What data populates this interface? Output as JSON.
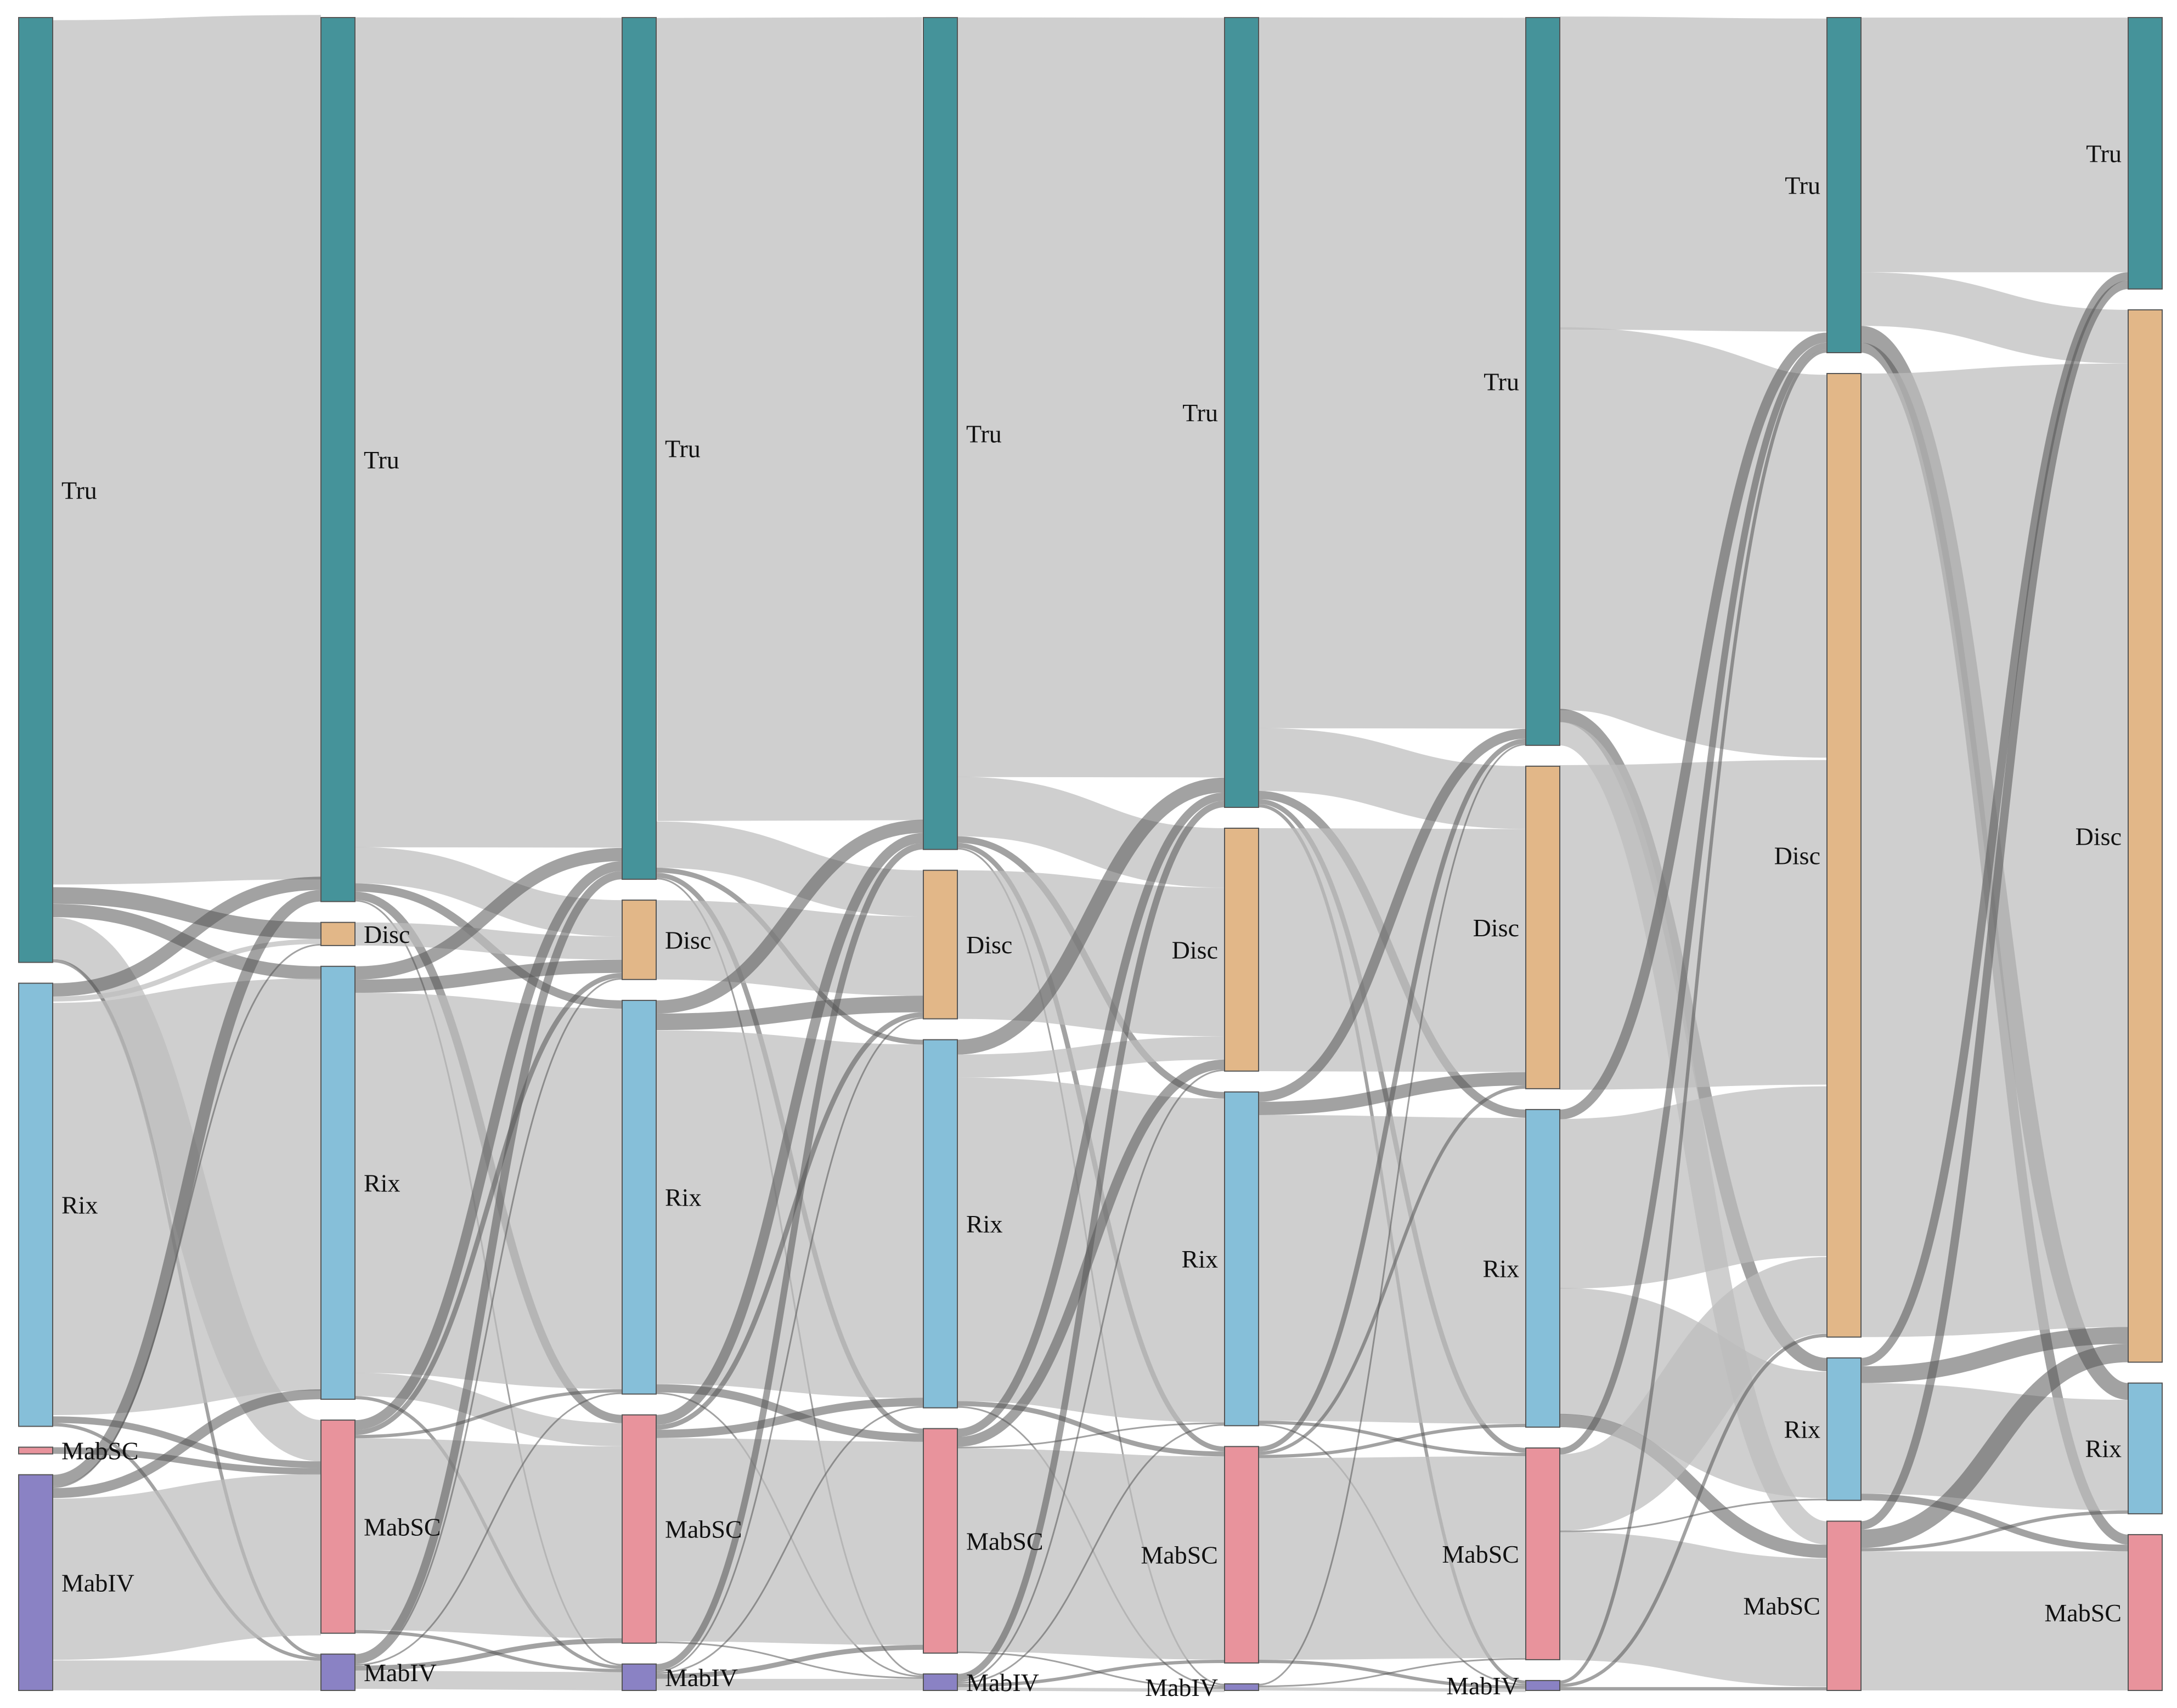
{
  "colors": {
    "Tru": "#45939a",
    "Disc": "#e2b788",
    "Rix": "#86bfd9",
    "MabSC": "#e8939c",
    "MabIV": "#8a82c4",
    "link": "#c8c8c8",
    "link_dark": "#666666"
  },
  "columns": [
    {
      "nodes": [
        {
          "label": "Tru",
          "value": 56.5
        },
        {
          "label": "Rix",
          "value": 26.5
        },
        {
          "label": "MabSC",
          "value": 0.4
        },
        {
          "label": "MabIV",
          "value": 12.9
        }
      ]
    },
    {
      "nodes": [
        {
          "label": "Tru",
          "value": 53.5
        },
        {
          "label": "Disc",
          "value": 1.4
        },
        {
          "label": "Rix",
          "value": 26.2
        },
        {
          "label": "MabSC",
          "value": 12.9
        },
        {
          "label": "MabIV",
          "value": 2.2
        }
      ]
    },
    {
      "nodes": [
        {
          "label": "Tru",
          "value": 52.1
        },
        {
          "label": "Disc",
          "value": 4.8
        },
        {
          "label": "Rix",
          "value": 23.8
        },
        {
          "label": "MabSC",
          "value": 13.8
        },
        {
          "label": "MabIV",
          "value": 1.6
        }
      ]
    },
    {
      "nodes": [
        {
          "label": "Tru",
          "value": 50.4
        },
        {
          "label": "Disc",
          "value": 9.0
        },
        {
          "label": "Rix",
          "value": 22.3
        },
        {
          "label": "MabSC",
          "value": 13.6
        },
        {
          "label": "MabIV",
          "value": 1.0
        }
      ]
    },
    {
      "nodes": [
        {
          "label": "Tru",
          "value": 47.8
        },
        {
          "label": "Disc",
          "value": 14.7
        },
        {
          "label": "Rix",
          "value": 20.2
        },
        {
          "label": "MabSC",
          "value": 13.1
        },
        {
          "label": "MabIV",
          "value": 0.4
        }
      ]
    },
    {
      "nodes": [
        {
          "label": "Tru",
          "value": 44.0
        },
        {
          "label": "Disc",
          "value": 19.5
        },
        {
          "label": "Rix",
          "value": 19.2
        },
        {
          "label": "MabSC",
          "value": 12.8
        },
        {
          "label": "MabIV",
          "value": 0.6
        }
      ]
    },
    {
      "nodes": [
        {
          "label": "Tru",
          "value": 20.0
        },
        {
          "label": "Disc",
          "value": 57.5
        },
        {
          "label": "Rix",
          "value": 8.5
        },
        {
          "label": "MabSC",
          "value": 10.1
        }
      ]
    },
    {
      "nodes": [
        {
          "label": "Tru",
          "value": 16.2
        },
        {
          "label": "Disc",
          "value": 62.8
        },
        {
          "label": "Rix",
          "value": 7.8
        },
        {
          "label": "MabSC",
          "value": 9.3
        }
      ]
    }
  ],
  "links": [
    [
      {
        "s": 0,
        "t": 0,
        "v": 52.0
      },
      {
        "s": 0,
        "t": 1,
        "v": 1.0
      },
      {
        "s": 0,
        "t": 2,
        "v": 0.8
      },
      {
        "s": 0,
        "t": 3,
        "v": 2.5
      },
      {
        "s": 0,
        "t": 4,
        "v": 0.2
      },
      {
        "s": 1,
        "t": 0,
        "v": 0.8
      },
      {
        "s": 1,
        "t": 1,
        "v": 0.3
      },
      {
        "s": 1,
        "t": 2,
        "v": 24.8
      },
      {
        "s": 1,
        "t": 3,
        "v": 0.4
      },
      {
        "s": 1,
        "t": 4,
        "v": 0.2
      },
      {
        "s": 2,
        "t": 3,
        "v": 0.4
      },
      {
        "s": 3,
        "t": 0,
        "v": 0.7
      },
      {
        "s": 3,
        "t": 1,
        "v": 0.1
      },
      {
        "s": 3,
        "t": 2,
        "v": 0.6
      },
      {
        "s": 3,
        "t": 3,
        "v": 9.7
      },
      {
        "s": 3,
        "t": 4,
        "v": 1.8
      }
    ],
    [
      {
        "s": 0,
        "t": 0,
        "v": 50.2
      },
      {
        "s": 0,
        "t": 1,
        "v": 2.2
      },
      {
        "s": 0,
        "t": 2,
        "v": 0.5
      },
      {
        "s": 0,
        "t": 3,
        "v": 0.5
      },
      {
        "s": 0,
        "t": 4,
        "v": 0.1
      },
      {
        "s": 1,
        "t": 1,
        "v": 1.4
      },
      {
        "s": 2,
        "t": 0,
        "v": 0.8
      },
      {
        "s": 2,
        "t": 1,
        "v": 0.8
      },
      {
        "s": 2,
        "t": 2,
        "v": 23.0
      },
      {
        "s": 2,
        "t": 3,
        "v": 1.4
      },
      {
        "s": 2,
        "t": 4,
        "v": 0.2
      },
      {
        "s": 3,
        "t": 0,
        "v": 0.6
      },
      {
        "s": 3,
        "t": 1,
        "v": 0.3
      },
      {
        "s": 3,
        "t": 2,
        "v": 0.2
      },
      {
        "s": 3,
        "t": 3,
        "v": 11.6
      },
      {
        "s": 3,
        "t": 4,
        "v": 0.2
      },
      {
        "s": 4,
        "t": 0,
        "v": 0.5
      },
      {
        "s": 4,
        "t": 1,
        "v": 0.1
      },
      {
        "s": 4,
        "t": 2,
        "v": 0.1
      },
      {
        "s": 4,
        "t": 3,
        "v": 0.3
      },
      {
        "s": 4,
        "t": 4,
        "v": 1.1
      }
    ],
    [
      {
        "s": 0,
        "t": 0,
        "v": 48.6
      },
      {
        "s": 0,
        "t": 1,
        "v": 2.8
      },
      {
        "s": 0,
        "t": 2,
        "v": 0.3
      },
      {
        "s": 0,
        "t": 3,
        "v": 0.3
      },
      {
        "s": 0,
        "t": 4,
        "v": 0.1
      },
      {
        "s": 1,
        "t": 1,
        "v": 4.8
      },
      {
        "s": 2,
        "t": 0,
        "v": 0.8
      },
      {
        "s": 2,
        "t": 1,
        "v": 1.0
      },
      {
        "s": 2,
        "t": 2,
        "v": 21.4
      },
      {
        "s": 2,
        "t": 3,
        "v": 0.5
      },
      {
        "s": 2,
        "t": 4,
        "v": 0.1
      },
      {
        "s": 3,
        "t": 0,
        "v": 0.6
      },
      {
        "s": 3,
        "t": 1,
        "v": 0.3
      },
      {
        "s": 3,
        "t": 2,
        "v": 0.5
      },
      {
        "s": 3,
        "t": 3,
        "v": 12.3
      },
      {
        "s": 3,
        "t": 4,
        "v": 0.1
      },
      {
        "s": 4,
        "t": 0,
        "v": 0.4
      },
      {
        "s": 4,
        "t": 1,
        "v": 0.1
      },
      {
        "s": 4,
        "t": 2,
        "v": 0.1
      },
      {
        "s": 4,
        "t": 3,
        "v": 0.3
      },
      {
        "s": 4,
        "t": 4,
        "v": 0.7
      }
    ],
    [
      {
        "s": 0,
        "t": 0,
        "v": 46.0
      },
      {
        "s": 0,
        "t": 1,
        "v": 3.6
      },
      {
        "s": 0,
        "t": 2,
        "v": 0.4
      },
      {
        "s": 0,
        "t": 3,
        "v": 0.3
      },
      {
        "s": 0,
        "t": 4,
        "v": 0.1
      },
      {
        "s": 1,
        "t": 1,
        "v": 9.0
      },
      {
        "s": 2,
        "t": 0,
        "v": 0.9
      },
      {
        "s": 2,
        "t": 1,
        "v": 1.4
      },
      {
        "s": 2,
        "t": 2,
        "v": 19.6
      },
      {
        "s": 2,
        "t": 3,
        "v": 0.3
      },
      {
        "s": 2,
        "t": 4,
        "v": 0.1
      },
      {
        "s": 3,
        "t": 0,
        "v": 0.5
      },
      {
        "s": 3,
        "t": 1,
        "v": 0.6
      },
      {
        "s": 3,
        "t": 2,
        "v": 0.1
      },
      {
        "s": 3,
        "t": 3,
        "v": 12.3
      },
      {
        "s": 3,
        "t": 4,
        "v": 0.1
      },
      {
        "s": 4,
        "t": 0,
        "v": 0.4
      },
      {
        "s": 4,
        "t": 1,
        "v": 0.1
      },
      {
        "s": 4,
        "t": 2,
        "v": 0.1
      },
      {
        "s": 4,
        "t": 3,
        "v": 0.2
      },
      {
        "s": 4,
        "t": 4,
        "v": 0.2
      }
    ],
    [
      {
        "s": 0,
        "t": 0,
        "v": 43.0
      },
      {
        "s": 0,
        "t": 1,
        "v": 3.8
      },
      {
        "s": 0,
        "t": 2,
        "v": 0.5
      },
      {
        "s": 0,
        "t": 3,
        "v": 0.3
      },
      {
        "s": 0,
        "t": 4,
        "v": 0.2
      },
      {
        "s": 1,
        "t": 1,
        "v": 14.7
      },
      {
        "s": 2,
        "t": 0,
        "v": 0.6
      },
      {
        "s": 2,
        "t": 1,
        "v": 0.8
      },
      {
        "s": 2,
        "t": 2,
        "v": 18.5
      },
      {
        "s": 2,
        "t": 3,
        "v": 0.2
      },
      {
        "s": 2,
        "t": 4,
        "v": 0.1
      },
      {
        "s": 3,
        "t": 0,
        "v": 0.3
      },
      {
        "s": 3,
        "t": 1,
        "v": 0.2
      },
      {
        "s": 3,
        "t": 2,
        "v": 0.2
      },
      {
        "s": 3,
        "t": 3,
        "v": 12.2
      },
      {
        "s": 3,
        "t": 4,
        "v": 0.2
      },
      {
        "s": 4,
        "t": 0,
        "v": 0.1
      },
      {
        "s": 4,
        "t": 3,
        "v": 0.1
      },
      {
        "s": 4,
        "t": 4,
        "v": 0.2
      }
    ],
    [
      {
        "s": 0,
        "t": 0,
        "v": 18.8
      },
      {
        "s": 0,
        "t": 1,
        "v": 23.0
      },
      {
        "s": 0,
        "t": 2,
        "v": 0.8
      },
      {
        "s": 0,
        "t": 3,
        "v": 1.4
      },
      {
        "s": 1,
        "t": 1,
        "v": 19.5
      },
      {
        "s": 2,
        "t": 0,
        "v": 0.6
      },
      {
        "s": 2,
        "t": 1,
        "v": 10.2
      },
      {
        "s": 2,
        "t": 2,
        "v": 7.6
      },
      {
        "s": 2,
        "t": 3,
        "v": 0.8
      },
      {
        "s": 3,
        "t": 0,
        "v": 0.4
      },
      {
        "s": 3,
        "t": 1,
        "v": 4.6
      },
      {
        "s": 3,
        "t": 2,
        "v": 0.1
      },
      {
        "s": 3,
        "t": 3,
        "v": 7.7
      },
      {
        "s": 4,
        "t": 0,
        "v": 0.2
      },
      {
        "s": 4,
        "t": 1,
        "v": 0.2
      },
      {
        "s": 4,
        "t": 3,
        "v": 0.2
      }
    ],
    [
      {
        "s": 0,
        "t": 0,
        "v": 15.2
      },
      {
        "s": 0,
        "t": 1,
        "v": 3.2
      },
      {
        "s": 0,
        "t": 2,
        "v": 1.0
      },
      {
        "s": 0,
        "t": 3,
        "v": 0.6
      },
      {
        "s": 1,
        "t": 1,
        "v": 57.5
      },
      {
        "s": 2,
        "t": 0,
        "v": 0.5
      },
      {
        "s": 2,
        "t": 1,
        "v": 1.0
      },
      {
        "s": 2,
        "t": 2,
        "v": 6.6
      },
      {
        "s": 2,
        "t": 3,
        "v": 0.4
      },
      {
        "s": 3,
        "t": 0,
        "v": 0.5
      },
      {
        "s": 3,
        "t": 1,
        "v": 1.1
      },
      {
        "s": 3,
        "t": 2,
        "v": 0.2
      },
      {
        "s": 3,
        "t": 3,
        "v": 8.3
      }
    ]
  ]
}
